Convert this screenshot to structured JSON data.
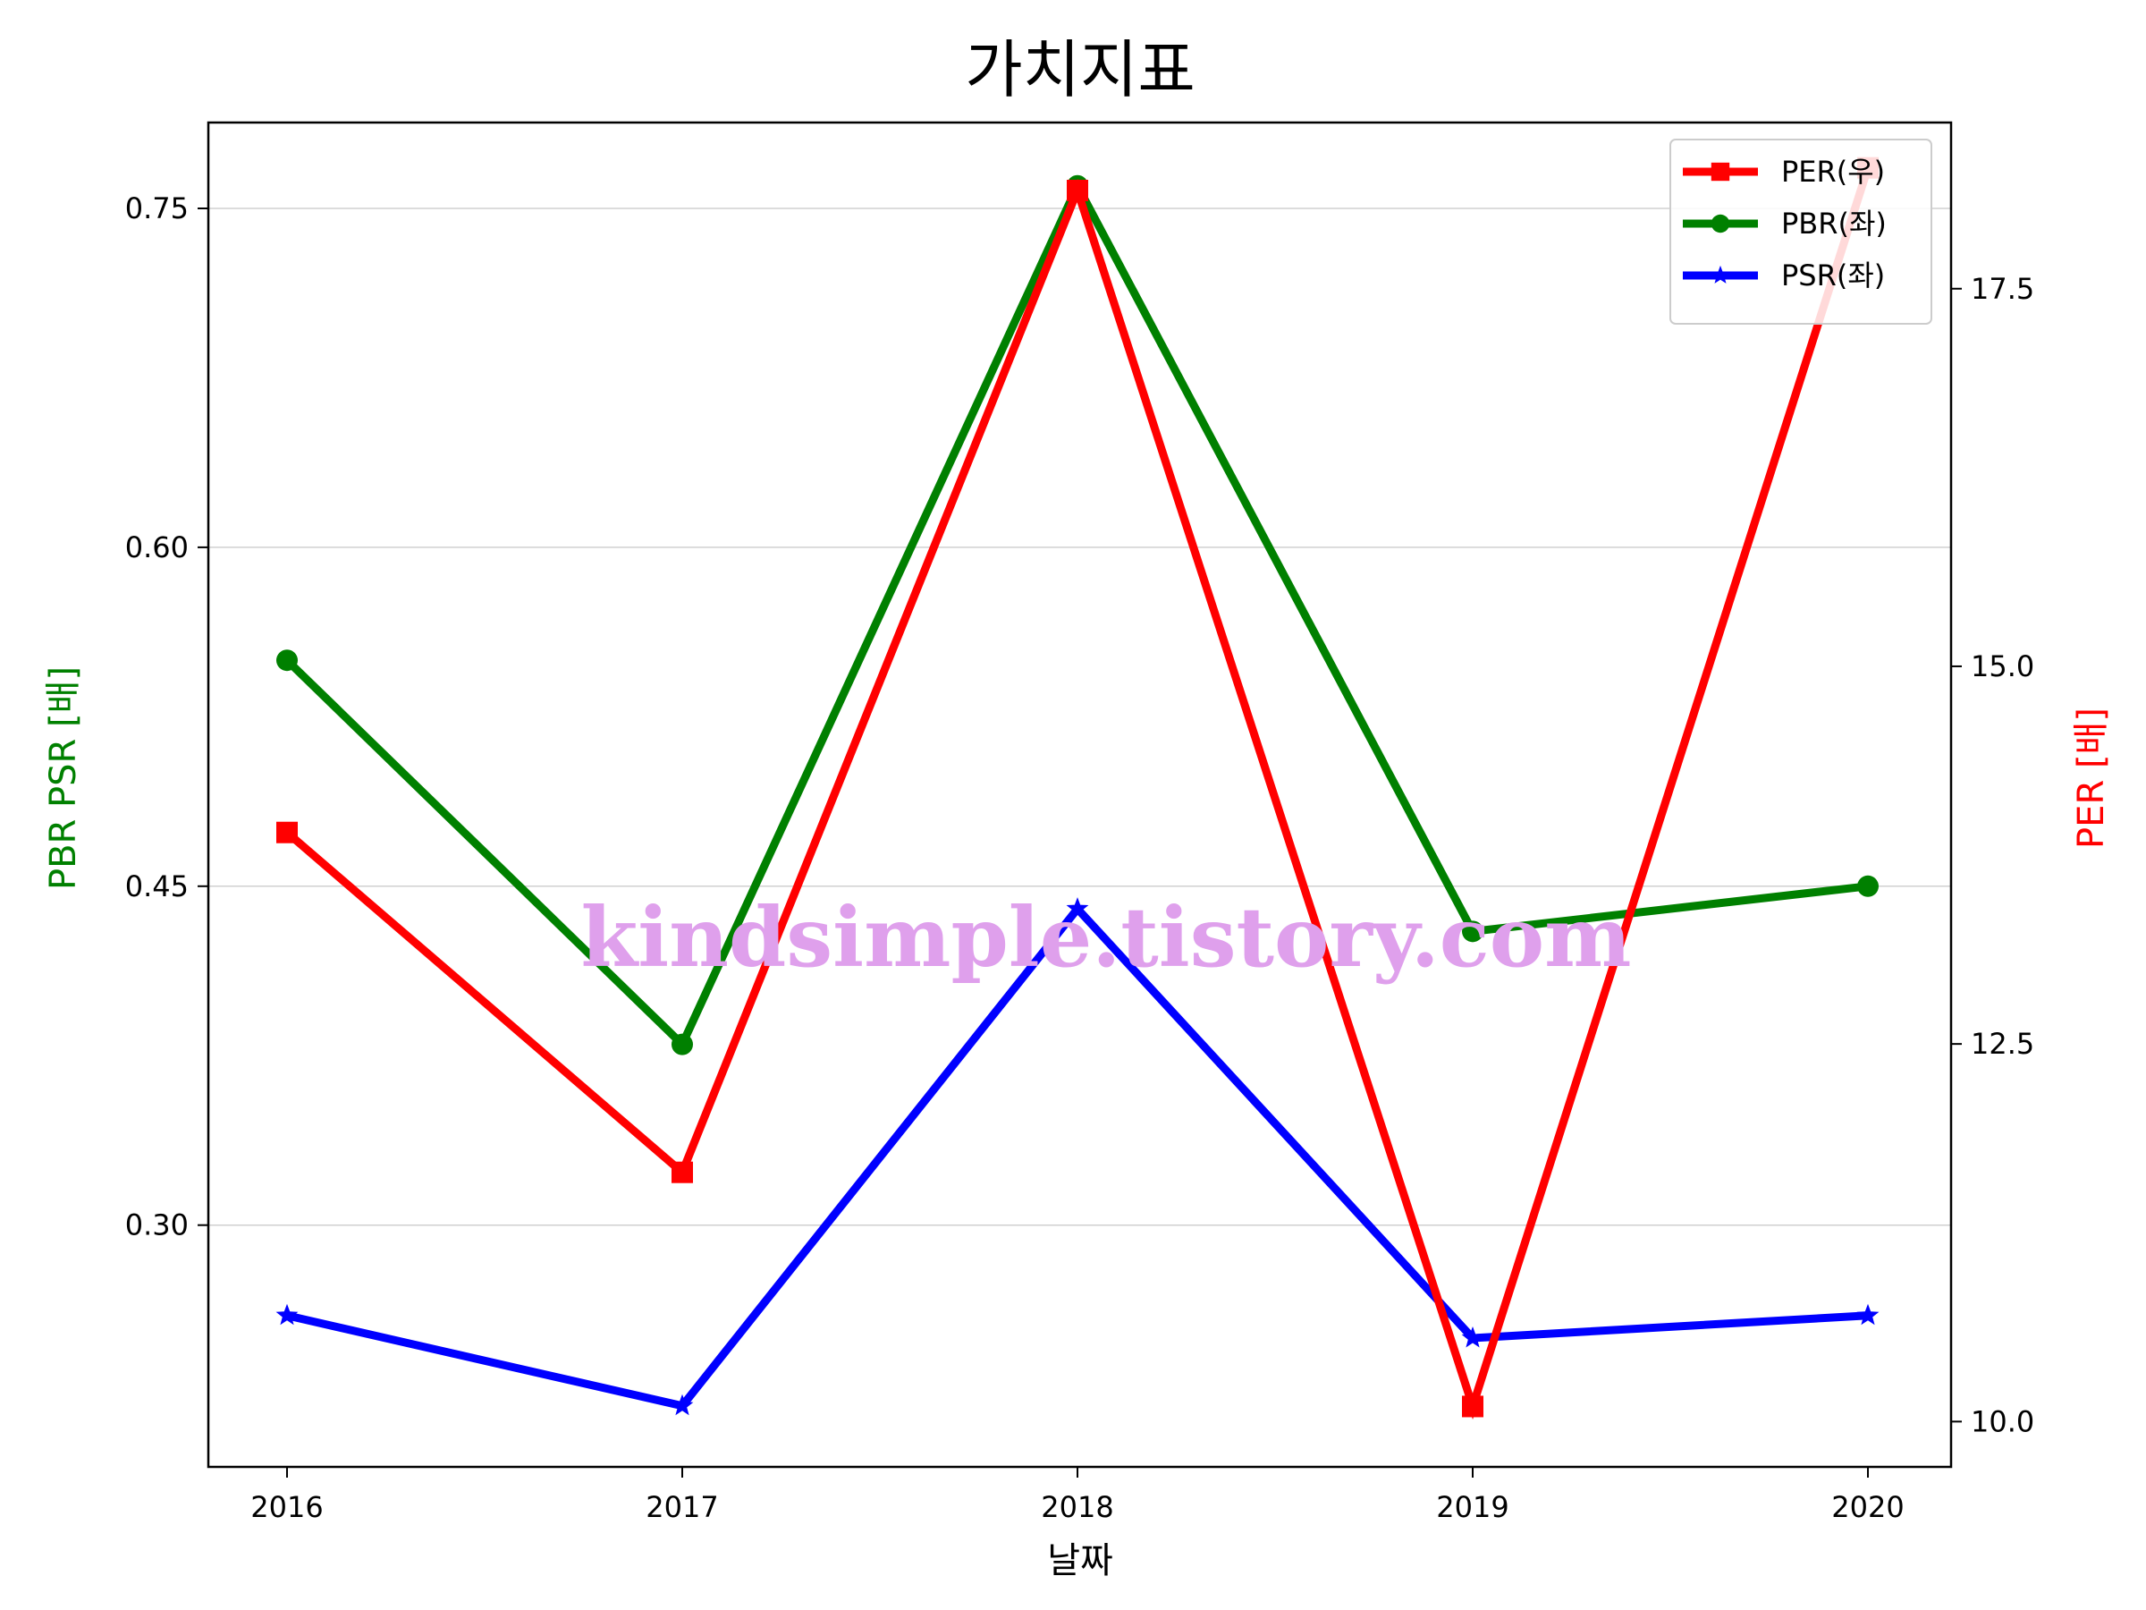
{
  "chart_data": {
    "type": "line",
    "title": "가치지표",
    "xlabel": "날짜",
    "ylabel_left": "PBR PSR [배]",
    "ylabel_right": "PER [배]",
    "categories": [
      "2016",
      "2017",
      "2018",
      "2019",
      "2020"
    ],
    "left_axis": {
      "ylim": [
        0.193,
        0.788
      ],
      "ticks": [
        0.3,
        0.45,
        0.6,
        0.75
      ],
      "tick_labels": [
        "0.30",
        "0.45",
        "0.60",
        "0.75"
      ],
      "color": "#008000"
    },
    "right_axis": {
      "ylim": [
        9.7,
        18.6
      ],
      "ticks": [
        10.0,
        12.5,
        15.0,
        17.5
      ],
      "tick_labels": [
        "10.0",
        "12.5",
        "15.0",
        "17.5"
      ],
      "color": "#ff0000"
    },
    "series": [
      {
        "name": "PER(우)",
        "axis": "right",
        "color": "#ff0000",
        "marker": "square",
        "values": [
          13.9,
          11.65,
          18.15,
          10.1,
          18.3
        ]
      },
      {
        "name": "PBR(좌)",
        "axis": "left",
        "color": "#008000",
        "marker": "circle",
        "values": [
          0.55,
          0.38,
          0.76,
          0.43,
          0.45
        ]
      },
      {
        "name": "PSR(좌)",
        "axis": "left",
        "color": "#0000ff",
        "marker": "star",
        "values": [
          0.26,
          0.22,
          0.44,
          0.25,
          0.26
        ]
      }
    ],
    "grid": "horizontal-left-axis",
    "legend": "top-right"
  },
  "watermark": "kindsimple.tistory.com"
}
